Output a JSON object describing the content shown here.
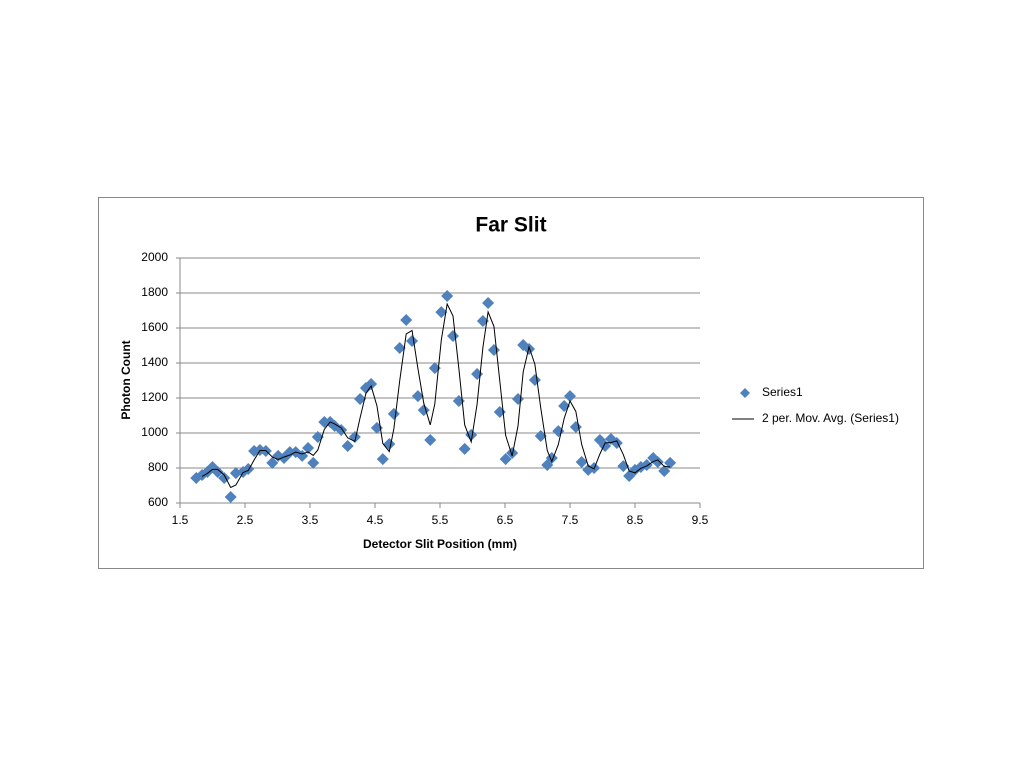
{
  "chart_data": {
    "type": "scatter",
    "title": "Far Slit",
    "x_label": "Detector Slit Position (mm)",
    "y_label": "Photon Count",
    "xlim": [
      1.5,
      9.5
    ],
    "xticks": [
      1.5,
      2.5,
      3.5,
      4.5,
      5.5,
      6.5,
      7.5,
      8.5,
      9.5
    ],
    "ylim": [
      600,
      2000
    ],
    "yticks": [
      600,
      800,
      1000,
      1200,
      1400,
      1600,
      1800,
      2000
    ],
    "grid": true,
    "legend": "right",
    "series": [
      {
        "name": "Series1",
        "color": "#4f81bd",
        "marker": "diamond",
        "x": [
          1.75,
          1.84,
          1.92,
          2.0,
          2.08,
          2.18,
          2.28,
          2.36,
          2.47,
          2.55,
          2.64,
          2.73,
          2.82,
          2.92,
          3.01,
          3.1,
          3.19,
          3.28,
          3.38,
          3.47,
          3.55,
          3.62,
          3.72,
          3.81,
          3.88,
          3.98,
          4.08,
          4.19,
          4.27,
          4.36,
          4.44,
          4.53,
          4.62,
          4.72,
          4.79,
          4.88,
          4.98,
          5.07,
          5.16,
          5.25,
          5.35,
          5.42,
          5.52,
          5.61,
          5.7,
          5.79,
          5.88,
          5.98,
          6.07,
          6.16,
          6.24,
          6.33,
          6.42,
          6.51,
          6.61,
          6.7,
          6.78,
          6.87,
          6.96,
          7.05,
          7.15,
          7.22,
          7.32,
          7.41,
          7.5,
          7.59,
          7.68,
          7.78,
          7.87,
          7.96,
          8.04,
          8.13,
          8.22,
          8.32,
          8.41,
          8.5,
          8.59,
          8.68,
          8.78,
          8.85,
          8.95,
          9.04
        ],
        "values": [
          743,
          760,
          777,
          806,
          777,
          743,
          634,
          771,
          777,
          794,
          897,
          903,
          897,
          829,
          869,
          857,
          891,
          891,
          869,
          914,
          829,
          977,
          1063,
          1063,
          1040,
          1017,
          926,
          977,
          1194,
          1257,
          1280,
          1029,
          851,
          937,
          1109,
          1486,
          1646,
          1526,
          1211,
          1131,
          960,
          1371,
          1691,
          1783,
          1554,
          1183,
          909,
          989,
          1337,
          1640,
          1743,
          1474,
          1120,
          851,
          886,
          1194,
          1503,
          1480,
          1303,
          983,
          817,
          857,
          1011,
          1154,
          1211,
          1034,
          834,
          789,
          800,
          960,
          926,
          966,
          943,
          811,
          754,
          789,
          806,
          817,
          857,
          834,
          783,
          829
        ]
      },
      {
        "name": "2 per. Mov. Avg. (Series1)",
        "color": "#000000",
        "marker": "line",
        "x": [
          1.84,
          1.92,
          2.0,
          2.08,
          2.18,
          2.28,
          2.36,
          2.47,
          2.55,
          2.64,
          2.73,
          2.82,
          2.92,
          3.01,
          3.1,
          3.19,
          3.28,
          3.38,
          3.47,
          3.55,
          3.62,
          3.72,
          3.81,
          3.88,
          3.98,
          4.08,
          4.19,
          4.27,
          4.36,
          4.44,
          4.53,
          4.62,
          4.72,
          4.79,
          4.88,
          4.98,
          5.07,
          5.16,
          5.25,
          5.35,
          5.42,
          5.52,
          5.61,
          5.7,
          5.79,
          5.88,
          5.98,
          6.07,
          6.16,
          6.24,
          6.33,
          6.42,
          6.51,
          6.61,
          6.7,
          6.78,
          6.87,
          6.96,
          7.05,
          7.15,
          7.22,
          7.32,
          7.41,
          7.5,
          7.59,
          7.68,
          7.78,
          7.87,
          7.96,
          8.04,
          8.13,
          8.22,
          8.32,
          8.41,
          8.5,
          8.59,
          8.68,
          8.78,
          8.85,
          8.95,
          9.04
        ],
        "values": [
          752,
          769,
          792,
          792,
          760,
          689,
          703,
          774,
          786,
          846,
          900,
          900,
          863,
          849,
          863,
          874,
          891,
          880,
          892,
          872,
          903,
          1020,
          1063,
          1052,
          1029,
          972,
          952,
          1086,
          1226,
          1269,
          1155,
          940,
          894,
          1023,
          1298,
          1566,
          1586,
          1369,
          1171,
          1046,
          1166,
          1531,
          1737,
          1669,
          1369,
          1046,
          949,
          1163,
          1489,
          1692,
          1609,
          1297,
          986,
          869,
          1040,
          1349,
          1492,
          1392,
          1143,
          900,
          837,
          934,
          1083,
          1183,
          1123,
          934,
          812,
          795,
          880,
          943,
          946,
          955,
          877,
          783,
          772,
          798,
          812,
          837,
          846,
          809,
          806
        ]
      }
    ]
  }
}
